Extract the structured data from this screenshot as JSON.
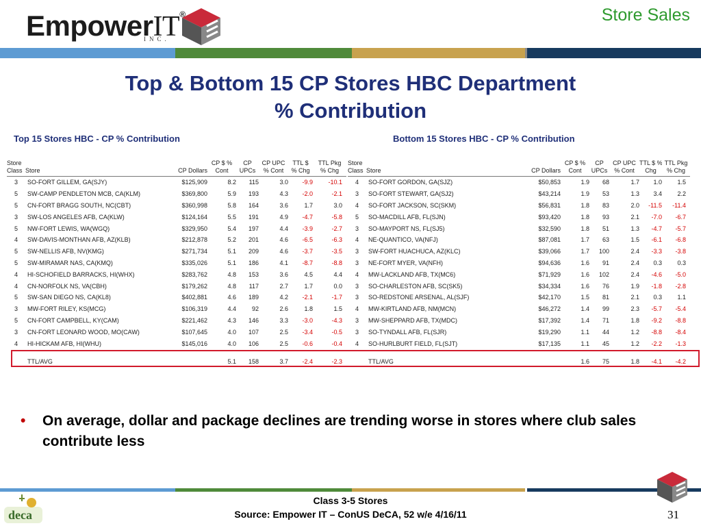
{
  "header": {
    "logo_main": "Empower",
    "logo_it": "IT",
    "logo_reg": "®",
    "logo_inc": "INC.",
    "corner_title": "Store Sales",
    "bar_colors": [
      "#5d9bd3",
      "#4f8a3a",
      "#c8a24e",
      "#8a8a8a",
      "#173a5e"
    ]
  },
  "title": {
    "line1": "Top & Bottom 15 CP Stores HBC Department",
    "line2": "% Contribution"
  },
  "top_table": {
    "subtitle": "Top 15 Stores HBC - CP % Contribution",
    "headers": [
      [
        "Store",
        "Class"
      ],
      [
        "",
        "Store"
      ],
      [
        "",
        "CP Dollars"
      ],
      [
        "CP $ %",
        "Cont"
      ],
      [
        "CP",
        "UPCs"
      ],
      [
        "CP UPC",
        "% Cont"
      ],
      [
        "TTL $",
        "% Chg"
      ],
      [
        "TTL Pkg",
        "% Chg"
      ]
    ],
    "rows": [
      [
        "3",
        "SO-FORT GILLEM, GA(SJY)",
        "$125,909",
        "8.2",
        "115",
        "3.0",
        "-9.9",
        "-10.1"
      ],
      [
        "5",
        "SW-CAMP PENDLETON MCB, CA(KLM)",
        "$369,800",
        "5.9",
        "193",
        "4.3",
        "-2.0",
        "-2.1"
      ],
      [
        "5",
        "CN-FORT BRAGG SOUTH, NC(CBT)",
        "$360,998",
        "5.8",
        "164",
        "3.6",
        "1.7",
        "3.0"
      ],
      [
        "3",
        "SW-LOS ANGELES AFB, CA(KLW)",
        "$124,164",
        "5.5",
        "191",
        "4.9",
        "-4.7",
        "-5.8"
      ],
      [
        "5",
        "NW-FORT LEWIS, WA(WGQ)",
        "$329,950",
        "5.4",
        "197",
        "4.4",
        "-3.9",
        "-2.7"
      ],
      [
        "4",
        "SW-DAVIS-MONTHAN AFB, AZ(KLB)",
        "$212,878",
        "5.2",
        "201",
        "4.6",
        "-6.5",
        "-6.3"
      ],
      [
        "5",
        "SW-NELLIS AFB, NV(KMG)",
        "$271,734",
        "5.1",
        "209",
        "4.6",
        "-3.7",
        "-3.5"
      ],
      [
        "5",
        "SW-MIRAMAR NAS, CA(KMQ)",
        "$335,026",
        "5.1",
        "186",
        "4.1",
        "-8.7",
        "-8.8"
      ],
      [
        "4",
        "HI-SCHOFIELD BARRACKS, HI(WHX)",
        "$283,762",
        "4.8",
        "153",
        "3.6",
        "4.5",
        "4.4"
      ],
      [
        "4",
        "CN-NORFOLK NS, VA(CBH)",
        "$179,262",
        "4.8",
        "117",
        "2.7",
        "1.7",
        "0.0"
      ],
      [
        "5",
        "SW-SAN DIEGO NS, CA(KL8)",
        "$402,881",
        "4.6",
        "189",
        "4.2",
        "-2.1",
        "-1.7"
      ],
      [
        "3",
        "MW-FORT RILEY, KS(MCG)",
        "$106,319",
        "4.4",
        "92",
        "2.6",
        "1.8",
        "1.5"
      ],
      [
        "5",
        "CN-FORT CAMPBELL, KY(CAM)",
        "$221,462",
        "4.3",
        "146",
        "3.3",
        "-3.0",
        "-4.3"
      ],
      [
        "3",
        "CN-FORT LEONARD WOOD, MO(CAW)",
        "$107,645",
        "4.0",
        "107",
        "2.5",
        "-3.4",
        "-0.5"
      ],
      [
        "4",
        "HI-HICKAM AFB, HI(WHU)",
        "$145,016",
        "4.0",
        "106",
        "2.5",
        "-0.6",
        "-0.4"
      ]
    ],
    "total": [
      "",
      "TTL/AVG",
      "",
      "5.1",
      "158",
      "3.7",
      "-2.4",
      "-2.3"
    ]
  },
  "bottom_table": {
    "subtitle": "Bottom 15 Stores HBC - CP % Contribution",
    "headers": [
      [
        "Store",
        "Class"
      ],
      [
        "",
        "Store"
      ],
      [
        "",
        "CP Dollars"
      ],
      [
        "CP $ %",
        "Cont"
      ],
      [
        "CP",
        "UPCs"
      ],
      [
        "CP UPC",
        "% Cont"
      ],
      [
        "TTL $ %",
        "Chg"
      ],
      [
        "TTL Pkg",
        "% Chg"
      ]
    ],
    "rows": [
      [
        "4",
        "SO-FORT GORDON, GA(SJZ)",
        "$50,853",
        "1.9",
        "68",
        "1.7",
        "1.0",
        "1.5"
      ],
      [
        "3",
        "SO-FORT STEWART, GA(SJ2)",
        "$43,214",
        "1.9",
        "53",
        "1.3",
        "3.4",
        "2.2"
      ],
      [
        "4",
        "SO-FORT JACKSON, SC(SKM)",
        "$56,831",
        "1.8",
        "83",
        "2.0",
        "-11.5",
        "-11.4"
      ],
      [
        "5",
        "SO-MACDILL AFB, FL(SJN)",
        "$93,420",
        "1.8",
        "93",
        "2.1",
        "-7.0",
        "-6.7"
      ],
      [
        "3",
        "SO-MAYPORT NS, FL(SJ5)",
        "$32,590",
        "1.8",
        "51",
        "1.3",
        "-4.7",
        "-5.7"
      ],
      [
        "4",
        "NE-QUANTICO, VA(NFJ)",
        "$87,081",
        "1.7",
        "63",
        "1.5",
        "-6.1",
        "-6.8"
      ],
      [
        "3",
        "SW-FORT HUACHUCA, AZ(KLC)",
        "$39,066",
        "1.7",
        "100",
        "2.4",
        "-3.3",
        "-3.8"
      ],
      [
        "3",
        "NE-FORT MYER, VA(NFH)",
        "$94,636",
        "1.6",
        "91",
        "2.4",
        "0.3",
        "0.3"
      ],
      [
        "4",
        "MW-LACKLAND AFB, TX(MC6)",
        "$71,929",
        "1.6",
        "102",
        "2.4",
        "-4.6",
        "-5.0"
      ],
      [
        "3",
        "SO-CHARLESTON AFB, SC(SK5)",
        "$34,334",
        "1.6",
        "76",
        "1.9",
        "-1.8",
        "-2.8"
      ],
      [
        "3",
        "SO-REDSTONE ARSENAL, AL(SJF)",
        "$42,170",
        "1.5",
        "81",
        "2.1",
        "0.3",
        "1.1"
      ],
      [
        "4",
        "MW-KIRTLAND AFB, NM(MCN)",
        "$46,272",
        "1.4",
        "99",
        "2.3",
        "-5.7",
        "-5.4"
      ],
      [
        "3",
        "MW-SHEPPARD AFB, TX(MDC)",
        "$17,392",
        "1.4",
        "71",
        "1.8",
        "-9.2",
        "-8.8"
      ],
      [
        "3",
        "SO-TYNDALL AFB, FL(SJR)",
        "$19,290",
        "1.1",
        "44",
        "1.2",
        "-8.8",
        "-8.4"
      ],
      [
        "4",
        "SO-HURLBURT FIELD, FL(SJT)",
        "$17,135",
        "1.1",
        "45",
        "1.2",
        "-2.2",
        "-1.3"
      ]
    ],
    "total": [
      "",
      "TTL/AVG",
      "",
      "1.6",
      "75",
      "1.8",
      "-4.1",
      "-4.2"
    ]
  },
  "bullet": {
    "symbol": "•",
    "text": "On average, dollar and package declines are trending worse in stores where club sales contribute less"
  },
  "footer": {
    "line1": "Class 3-5 Stores",
    "line2": "Source:  Empower IT – ConUS DeCA, 52 w/e 4/16/11",
    "page_number": "31",
    "logo_text": "deca"
  },
  "colors": {
    "title": "#1f2f78",
    "corner_title": "#2e9a2e",
    "negative": "#d40000",
    "highlight_box": "#d1192b"
  }
}
